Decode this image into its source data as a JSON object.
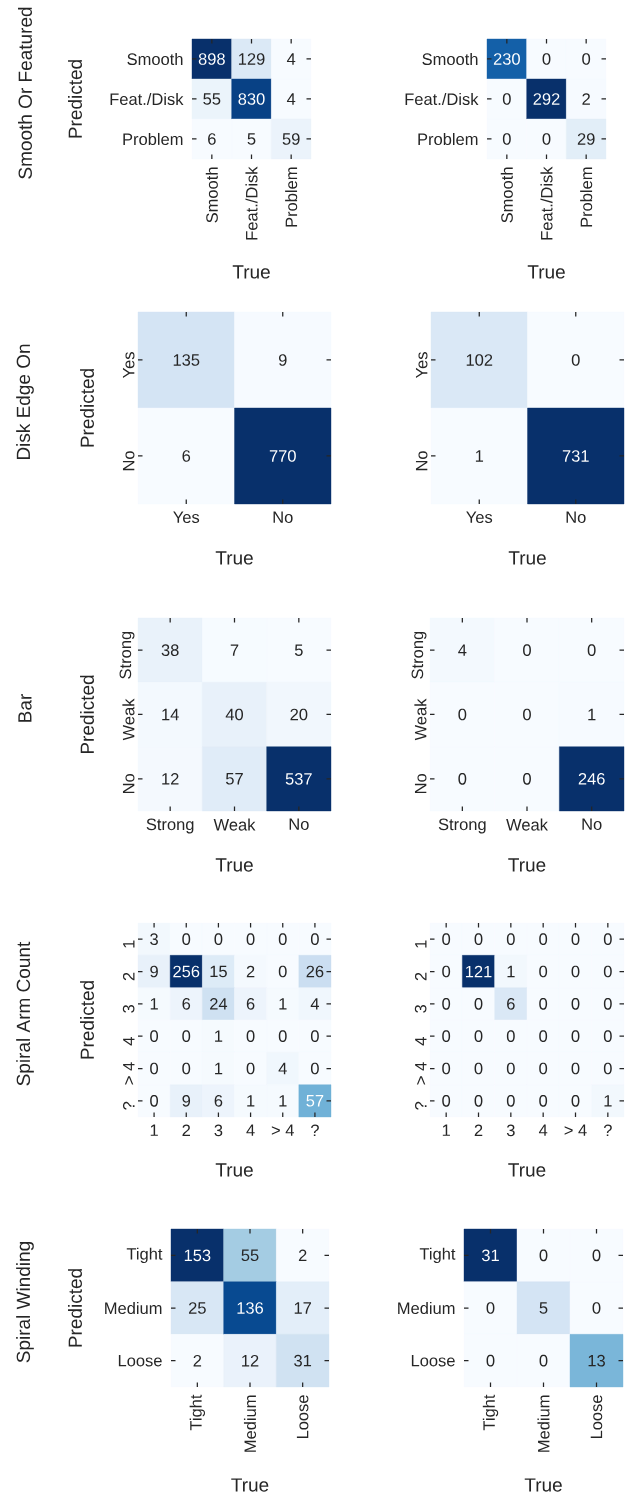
{
  "chart_data": [
    {
      "type": "heatmap",
      "title": "Smooth Or Featured",
      "categories": [
        "Smooth",
        "Feat./Disk",
        "Problem"
      ],
      "y_categories": [
        "Smooth",
        "Feat./Disk",
        "Problem"
      ],
      "cells": [
        [
          898,
          129,
          4
        ],
        [
          55,
          830,
          4
        ],
        [
          6,
          5,
          59
        ]
      ],
      "xlabel": "True",
      "ylabel": "Predicted",
      "data_labels": true
    },
    {
      "type": "heatmap",
      "categories": [
        "Smooth",
        "Feat./Disk",
        "Problem"
      ],
      "y_categories": [
        "Smooth",
        "Feat./Disk",
        "Problem"
      ],
      "cells": [
        [
          230,
          0,
          0
        ],
        [
          0,
          292,
          2
        ],
        [
          0,
          0,
          29
        ]
      ],
      "xlabel": "True",
      "data_labels": true
    },
    {
      "type": "heatmap",
      "title": "Disk Edge On",
      "categories": [
        "Yes",
        "No"
      ],
      "y_categories": [
        "Yes",
        "No"
      ],
      "cells": [
        [
          135,
          9
        ],
        [
          6,
          770
        ]
      ],
      "xlabel": "True",
      "ylabel": "Predicted",
      "data_labels": true
    },
    {
      "type": "heatmap",
      "categories": [
        "Yes",
        "No"
      ],
      "y_categories": [
        "Yes",
        "No"
      ],
      "cells": [
        [
          102,
          0
        ],
        [
          1,
          731
        ]
      ],
      "xlabel": "True",
      "data_labels": true
    },
    {
      "type": "heatmap",
      "title": "Bar",
      "categories": [
        "Strong",
        "Weak",
        "No"
      ],
      "y_categories": [
        "Strong",
        "Weak",
        "No"
      ],
      "cells": [
        [
          38,
          7,
          5
        ],
        [
          14,
          40,
          20
        ],
        [
          12,
          57,
          537
        ]
      ],
      "xlabel": "True",
      "ylabel": "Predicted",
      "data_labels": true
    },
    {
      "type": "heatmap",
      "categories": [
        "Strong",
        "Weak",
        "No"
      ],
      "y_categories": [
        "Strong",
        "Weak",
        "No"
      ],
      "cells": [
        [
          4,
          0,
          0
        ],
        [
          0,
          0,
          1
        ],
        [
          0,
          0,
          246
        ]
      ],
      "xlabel": "True",
      "data_labels": true
    },
    {
      "type": "heatmap",
      "title": "Spiral Arm Count",
      "categories": [
        "1",
        "2",
        "3",
        "4",
        "> 4",
        "?"
      ],
      "y_categories": [
        "1",
        "2",
        "3",
        "4",
        "> 4",
        "?"
      ],
      "cells": [
        [
          3,
          0,
          0,
          0,
          0,
          0
        ],
        [
          9,
          256,
          15,
          2,
          0,
          26
        ],
        [
          1,
          6,
          24,
          6,
          1,
          4
        ],
        [
          0,
          0,
          1,
          0,
          0,
          0
        ],
        [
          0,
          0,
          1,
          0,
          4,
          0
        ],
        [
          0,
          9,
          6,
          1,
          1,
          57
        ]
      ],
      "xlabel": "True",
      "ylabel": "Predicted",
      "data_labels": true
    },
    {
      "type": "heatmap",
      "categories": [
        "1",
        "2",
        "3",
        "4",
        "> 4",
        "?"
      ],
      "y_categories": [
        "1",
        "2",
        "3",
        "4",
        "> 4",
        "?"
      ],
      "cells": [
        [
          0,
          0,
          0,
          0,
          0,
          0
        ],
        [
          0,
          121,
          1,
          0,
          0,
          0
        ],
        [
          0,
          0,
          6,
          0,
          0,
          0
        ],
        [
          0,
          0,
          0,
          0,
          0,
          0
        ],
        [
          0,
          0,
          0,
          0,
          0,
          0
        ],
        [
          0,
          0,
          0,
          0,
          0,
          1
        ]
      ],
      "xlabel": "True",
      "data_labels": true
    },
    {
      "type": "heatmap",
      "title": "Spiral Winding",
      "categories": [
        "Tight",
        "Medium",
        "Loose"
      ],
      "y_categories": [
        "Tight",
        "Medium",
        "Loose"
      ],
      "cells": [
        [
          153,
          55,
          2
        ],
        [
          25,
          136,
          17
        ],
        [
          2,
          12,
          31
        ]
      ],
      "xlabel": "True",
      "ylabel": "Predicted",
      "data_labels": true
    },
    {
      "type": "heatmap",
      "categories": [
        "Tight",
        "Medium",
        "Loose"
      ],
      "y_categories": [
        "Tight",
        "Medium",
        "Loose"
      ],
      "cells": [
        [
          31,
          0,
          0
        ],
        [
          0,
          5,
          0
        ],
        [
          0,
          0,
          13
        ]
      ],
      "xlabel": "True",
      "data_labels": true
    }
  ]
}
